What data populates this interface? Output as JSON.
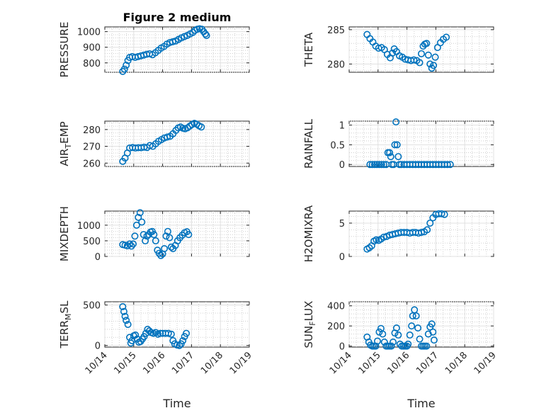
{
  "chart_data": [
    {
      "type": "scatter",
      "title": "Figure 2 medium",
      "ylabel": "PRESSURE",
      "ylim": [
        740,
        1030
      ],
      "yticks": [
        800,
        900,
        1000
      ],
      "xlim": [
        "10/14",
        "10/19"
      ],
      "xticks": [],
      "xlabel": "",
      "marker_color": "#0072bd",
      "points": [
        [
          14.62,
          745
        ],
        [
          14.68,
          760
        ],
        [
          14.74,
          785
        ],
        [
          14.8,
          815
        ],
        [
          14.86,
          835
        ],
        [
          14.95,
          840
        ],
        [
          15.05,
          835
        ],
        [
          15.15,
          840
        ],
        [
          15.25,
          845
        ],
        [
          15.35,
          850
        ],
        [
          15.45,
          855
        ],
        [
          15.55,
          858
        ],
        [
          15.65,
          852
        ],
        [
          15.75,
          865
        ],
        [
          15.85,
          880
        ],
        [
          15.95,
          895
        ],
        [
          16.05,
          905
        ],
        [
          16.15,
          920
        ],
        [
          16.25,
          930
        ],
        [
          16.35,
          935
        ],
        [
          16.45,
          940
        ],
        [
          16.55,
          950
        ],
        [
          16.65,
          960
        ],
        [
          16.75,
          968
        ],
        [
          16.85,
          975
        ],
        [
          16.95,
          985
        ],
        [
          17.05,
          995
        ],
        [
          17.12,
          1008
        ],
        [
          17.2,
          1015
        ],
        [
          17.28,
          1018
        ],
        [
          17.36,
          1015
        ],
        [
          17.42,
          1000
        ],
        [
          17.48,
          985
        ],
        [
          17.52,
          975
        ]
      ]
    },
    {
      "type": "scatter",
      "ylabel": "THETA",
      "ylim": [
        278.8,
        285.4
      ],
      "yticks": [
        280,
        285
      ],
      "xlim": [
        "10/14",
        "10/19"
      ],
      "xticks": [],
      "xlabel": "",
      "marker_color": "#0072bd",
      "points": [
        [
          14.62,
          284.3
        ],
        [
          14.72,
          283.7
        ],
        [
          14.82,
          283.2
        ],
        [
          14.92,
          282.6
        ],
        [
          15.02,
          282.3
        ],
        [
          15.12,
          282.4
        ],
        [
          15.22,
          282.1
        ],
        [
          15.32,
          281.4
        ],
        [
          15.42,
          280.9
        ],
        [
          15.5,
          281.6
        ],
        [
          15.56,
          282.2
        ],
        [
          15.64,
          281.8
        ],
        [
          15.74,
          281.2
        ],
        [
          15.84,
          281.0
        ],
        [
          15.94,
          280.7
        ],
        [
          16.04,
          280.6
        ],
        [
          16.14,
          280.5
        ],
        [
          16.24,
          280.6
        ],
        [
          16.34,
          280.5
        ],
        [
          16.44,
          280.2
        ],
        [
          16.5,
          281.5
        ],
        [
          16.56,
          282.6
        ],
        [
          16.62,
          282.9
        ],
        [
          16.68,
          283.0
        ],
        [
          16.74,
          281.3
        ],
        [
          16.8,
          280.0
        ],
        [
          16.86,
          279.4
        ],
        [
          16.92,
          279.8
        ],
        [
          16.98,
          281.0
        ],
        [
          17.06,
          282.4
        ],
        [
          17.16,
          283.1
        ],
        [
          17.26,
          283.6
        ],
        [
          17.36,
          283.9
        ]
      ]
    },
    {
      "type": "scatter",
      "ylabel": "AIR_TEMP",
      "ylim": [
        258,
        285
      ],
      "yticks": [
        260,
        270,
        280
      ],
      "xlim": [
        "10/14",
        "10/19"
      ],
      "xticks": [],
      "xlabel": "",
      "marker_color": "#0072bd",
      "points": [
        [
          14.62,
          261
        ],
        [
          14.7,
          263
        ],
        [
          14.78,
          266
        ],
        [
          14.86,
          269
        ],
        [
          14.96,
          269.3
        ],
        [
          15.06,
          269
        ],
        [
          15.16,
          269.2
        ],
        [
          15.26,
          269.2
        ],
        [
          15.36,
          269.5
        ],
        [
          15.46,
          269.3
        ],
        [
          15.56,
          270.5
        ],
        [
          15.66,
          270
        ],
        [
          15.76,
          271.5
        ],
        [
          15.86,
          273
        ],
        [
          15.96,
          274
        ],
        [
          16.06,
          275
        ],
        [
          16.16,
          275.5
        ],
        [
          16.26,
          276
        ],
        [
          16.36,
          277.5
        ],
        [
          16.46,
          279.5
        ],
        [
          16.54,
          281
        ],
        [
          16.62,
          281.5
        ],
        [
          16.7,
          280.8
        ],
        [
          16.78,
          280.5
        ],
        [
          16.86,
          281
        ],
        [
          16.94,
          282
        ],
        [
          17.02,
          283
        ],
        [
          17.1,
          283.7
        ],
        [
          17.18,
          283.2
        ],
        [
          17.26,
          282.2
        ],
        [
          17.34,
          281.5
        ]
      ]
    },
    {
      "type": "scatter",
      "ylabel": "RAINFALL",
      "ylim": [
        -0.05,
        1.1
      ],
      "yticks": [
        0,
        0.5,
        1
      ],
      "xlim": [
        "10/14",
        "10/19"
      ],
      "xticks": [],
      "xlabel": "",
      "marker_color": "#0072bd",
      "points": [
        [
          14.72,
          0
        ],
        [
          14.8,
          0
        ],
        [
          14.88,
          0
        ],
        [
          14.96,
          0
        ],
        [
          15.04,
          0
        ],
        [
          15.12,
          0
        ],
        [
          15.2,
          0
        ],
        [
          15.28,
          0
        ],
        [
          15.34,
          0.3
        ],
        [
          15.4,
          0.3
        ],
        [
          15.44,
          0.2
        ],
        [
          15.48,
          0
        ],
        [
          15.54,
          0
        ],
        [
          15.58,
          0.5
        ],
        [
          15.62,
          1.08
        ],
        [
          15.66,
          0.5
        ],
        [
          15.7,
          0.2
        ],
        [
          15.74,
          0
        ],
        [
          15.8,
          0
        ],
        [
          15.9,
          0
        ],
        [
          16.0,
          0
        ],
        [
          16.1,
          0
        ],
        [
          16.2,
          0
        ],
        [
          16.3,
          0
        ],
        [
          16.4,
          0
        ],
        [
          16.5,
          0
        ],
        [
          16.6,
          0
        ],
        [
          16.7,
          0
        ],
        [
          16.8,
          0
        ],
        [
          16.9,
          0
        ],
        [
          17.0,
          0
        ],
        [
          17.1,
          0
        ],
        [
          17.2,
          0
        ],
        [
          17.3,
          0
        ],
        [
          17.4,
          0
        ],
        [
          17.5,
          0
        ]
      ]
    },
    {
      "type": "scatter",
      "ylabel": "MIXDEPTH",
      "ylim": [
        0,
        1450
      ],
      "yticks": [
        0,
        500,
        1000
      ],
      "xlim": [
        "10/14",
        "10/19"
      ],
      "xticks": [],
      "xlabel": "",
      "marker_color": "#0072bd",
      "points": [
        [
          14.62,
          380
        ],
        [
          14.7,
          360
        ],
        [
          14.78,
          340
        ],
        [
          14.86,
          400
        ],
        [
          14.92,
          330
        ],
        [
          14.98,
          400
        ],
        [
          15.04,
          650
        ],
        [
          15.1,
          1000
        ],
        [
          15.16,
          1250
        ],
        [
          15.22,
          1400
        ],
        [
          15.28,
          1100
        ],
        [
          15.34,
          700
        ],
        [
          15.4,
          500
        ],
        [
          15.46,
          650
        ],
        [
          15.52,
          700
        ],
        [
          15.58,
          780
        ],
        [
          15.64,
          800
        ],
        [
          15.7,
          700
        ],
        [
          15.76,
          500
        ],
        [
          15.82,
          200
        ],
        [
          15.88,
          100
        ],
        [
          15.94,
          30
        ],
        [
          16.0,
          80
        ],
        [
          16.06,
          250
        ],
        [
          16.12,
          650
        ],
        [
          16.18,
          800
        ],
        [
          16.24,
          600
        ],
        [
          16.3,
          300
        ],
        [
          16.36,
          250
        ],
        [
          16.44,
          350
        ],
        [
          16.52,
          500
        ],
        [
          16.6,
          600
        ],
        [
          16.68,
          680
        ],
        [
          16.76,
          760
        ],
        [
          16.84,
          790
        ],
        [
          16.9,
          700
        ]
      ]
    },
    {
      "type": "scatter",
      "ylabel": "H2OMIXRA",
      "ylim": [
        0,
        6.8
      ],
      "yticks": [
        0,
        5
      ],
      "xlim": [
        "10/14",
        "10/19"
      ],
      "xticks": [],
      "xlabel": "",
      "marker_color": "#0072bd",
      "points": [
        [
          14.62,
          1.1
        ],
        [
          14.7,
          1.3
        ],
        [
          14.78,
          1.6
        ],
        [
          14.86,
          2.3
        ],
        [
          14.94,
          2.5
        ],
        [
          15.02,
          2.4
        ],
        [
          15.1,
          2.6
        ],
        [
          15.2,
          2.9
        ],
        [
          15.3,
          3.0
        ],
        [
          15.4,
          3.2
        ],
        [
          15.5,
          3.3
        ],
        [
          15.6,
          3.4
        ],
        [
          15.7,
          3.5
        ],
        [
          15.8,
          3.6
        ],
        [
          15.9,
          3.6
        ],
        [
          16.0,
          3.6
        ],
        [
          16.1,
          3.5
        ],
        [
          16.2,
          3.6
        ],
        [
          16.3,
          3.6
        ],
        [
          16.4,
          3.5
        ],
        [
          16.5,
          3.6
        ],
        [
          16.6,
          3.7
        ],
        [
          16.7,
          4.0
        ],
        [
          16.8,
          5.0
        ],
        [
          16.9,
          5.8
        ],
        [
          17.0,
          6.3
        ],
        [
          17.1,
          6.4
        ],
        [
          17.2,
          6.4
        ],
        [
          17.3,
          6.3
        ]
      ]
    },
    {
      "type": "scatter",
      "ylabel": "TERR_MSL",
      "ylim": [
        -20,
        540
      ],
      "yticks": [
        0,
        500
      ],
      "xlim": [
        "10/14",
        "10/19"
      ],
      "xticks": [
        "10/14",
        "10/15",
        "10/16",
        "10/17",
        "10/18",
        "10/19"
      ],
      "xlabel": "Time",
      "marker_color": "#0072bd",
      "points": [
        [
          14.62,
          480
        ],
        [
          14.66,
          420
        ],
        [
          14.7,
          360
        ],
        [
          14.74,
          310
        ],
        [
          14.8,
          260
        ],
        [
          14.86,
          100
        ],
        [
          14.9,
          30
        ],
        [
          14.94,
          60
        ],
        [
          15.0,
          120
        ],
        [
          15.06,
          130
        ],
        [
          15.12,
          80
        ],
        [
          15.18,
          40
        ],
        [
          15.24,
          50
        ],
        [
          15.3,
          80
        ],
        [
          15.36,
          110
        ],
        [
          15.42,
          150
        ],
        [
          15.48,
          200
        ],
        [
          15.54,
          180
        ],
        [
          15.6,
          160
        ],
        [
          15.68,
          150
        ],
        [
          15.76,
          160
        ],
        [
          15.84,
          140
        ],
        [
          15.92,
          150
        ],
        [
          16.0,
          150
        ],
        [
          16.1,
          150
        ],
        [
          16.2,
          150
        ],
        [
          16.3,
          140
        ],
        [
          16.36,
          60
        ],
        [
          16.42,
          20
        ],
        [
          16.5,
          5
        ],
        [
          16.58,
          0
        ],
        [
          16.64,
          20
        ],
        [
          16.7,
          60
        ],
        [
          16.76,
          110
        ],
        [
          16.82,
          150
        ]
      ]
    },
    {
      "type": "scatter",
      "ylabel": "SUN_FLUX",
      "ylim": [
        -10,
        440
      ],
      "yticks": [
        0,
        200,
        400
      ],
      "xlim": [
        "10/14",
        "10/19"
      ],
      "xticks": [
        "10/14",
        "10/15",
        "10/16",
        "10/17",
        "10/18",
        "10/19"
      ],
      "xlabel": "Time",
      "marker_color": "#0072bd",
      "points": [
        [
          14.62,
          90
        ],
        [
          14.68,
          40
        ],
        [
          14.74,
          10
        ],
        [
          14.8,
          0
        ],
        [
          14.86,
          0
        ],
        [
          14.92,
          0
        ],
        [
          14.98,
          50
        ],
        [
          15.04,
          140
        ],
        [
          15.1,
          175
        ],
        [
          15.16,
          120
        ],
        [
          15.22,
          40
        ],
        [
          15.28,
          0
        ],
        [
          15.34,
          0
        ],
        [
          15.4,
          0
        ],
        [
          15.46,
          0
        ],
        [
          15.52,
          40
        ],
        [
          15.58,
          130
        ],
        [
          15.64,
          180
        ],
        [
          15.7,
          110
        ],
        [
          15.76,
          20
        ],
        [
          15.82,
          0
        ],
        [
          15.88,
          0
        ],
        [
          15.94,
          0
        ],
        [
          16.0,
          0
        ],
        [
          16.04,
          20
        ],
        [
          16.1,
          110
        ],
        [
          16.16,
          200
        ],
        [
          16.2,
          300
        ],
        [
          16.26,
          360
        ],
        [
          16.32,
          300
        ],
        [
          16.38,
          180
        ],
        [
          16.44,
          70
        ],
        [
          16.5,
          0
        ],
        [
          16.56,
          0
        ],
        [
          16.62,
          0
        ],
        [
          16.68,
          0
        ],
        [
          16.74,
          120
        ],
        [
          16.8,
          190
        ],
        [
          16.86,
          220
        ],
        [
          16.9,
          140
        ],
        [
          16.94,
          60
        ]
      ]
    }
  ]
}
